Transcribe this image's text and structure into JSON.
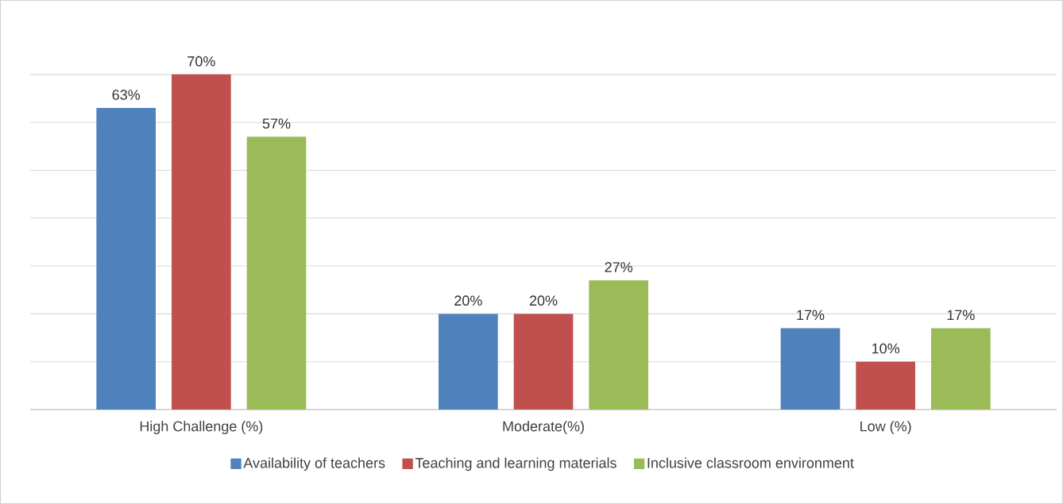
{
  "chart_data": {
    "type": "bar",
    "categories": [
      "High Challenge  (%)",
      "Moderate(%)",
      "Low (%)"
    ],
    "series": [
      {
        "name": "Availability of teachers",
        "color": "#4f81bd",
        "values": [
          63,
          20,
          17
        ],
        "value_labels": [
          "63%",
          "20%",
          "17%"
        ]
      },
      {
        "name": "Teaching and learning materials",
        "color": "#c0504d",
        "values": [
          70,
          20,
          10
        ],
        "value_labels": [
          "70%",
          "20%",
          "10%"
        ]
      },
      {
        "name": "Inclusive classroom environment",
        "color": "#9bbb59",
        "values": [
          57,
          27,
          17
        ],
        "value_labels": [
          "57%",
          "27%",
          "17%"
        ]
      }
    ],
    "tick_labels": "x",
    "grid": "y",
    "legend": "bottom"
  }
}
